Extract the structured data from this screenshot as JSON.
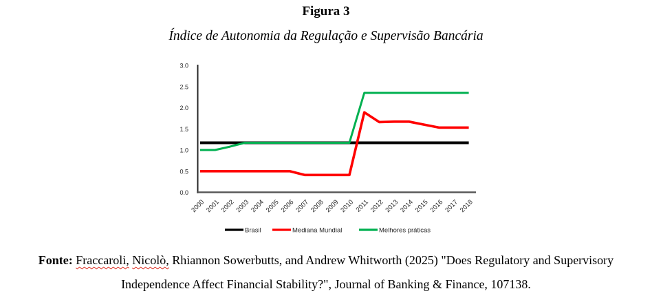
{
  "figure": {
    "label": "Figura 3",
    "subtitle": "Índice de Autonomia da Regulação e Supervisão Bancária"
  },
  "chart_data": {
    "type": "line",
    "title": "Índice de Autonomia da Regulação e Supervisão Bancária",
    "x": [
      2000,
      2001,
      2002,
      2003,
      2004,
      2005,
      2006,
      2007,
      2008,
      2009,
      2010,
      2011,
      2012,
      2013,
      2014,
      2015,
      2016,
      2017,
      2018
    ],
    "series": [
      {
        "name": "Brasil",
        "color": "#000000",
        "values": [
          1.17,
          1.17,
          1.17,
          1.17,
          1.17,
          1.17,
          1.17,
          1.17,
          1.17,
          1.17,
          1.17,
          1.17,
          1.17,
          1.17,
          1.17,
          1.17,
          1.17,
          1.17,
          1.17
        ]
      },
      {
        "name": "Mediana Mundial",
        "color": "#FF0000",
        "values": [
          0.5,
          0.5,
          0.5,
          0.5,
          0.5,
          0.5,
          0.5,
          0.41,
          0.41,
          0.41,
          0.41,
          1.89,
          1.66,
          1.67,
          1.67,
          1.6,
          1.53,
          1.53,
          1.53
        ]
      },
      {
        "name": "Melhores práticas",
        "color": "#00B050",
        "values": [
          1.0,
          1.0,
          1.08,
          1.17,
          1.17,
          1.17,
          1.17,
          1.17,
          1.17,
          1.17,
          1.17,
          2.35,
          2.35,
          2.35,
          2.35,
          2.35,
          2.35,
          2.35,
          2.35
        ]
      }
    ],
    "ylim": [
      0,
      3
    ],
    "ytick_step": 0.5,
    "ytick_labels": [
      "0.0",
      "0.5",
      "1.0",
      "1.5",
      "2.0",
      "2.5",
      "3.0"
    ],
    "grid": false,
    "legend_position": "bottom",
    "axis_color": "#595959",
    "tick_label_color": "#262626"
  },
  "source": {
    "label": "Fonte:",
    "word1": "Fraccaroli,",
    "word2": "Nicolò,",
    "line1_rest": "Rhiannon Sowerbutts, and Andrew Whitworth (2025) \"Does Regulatory and Supervisory",
    "line2": "Independence Affect Financial Stability?\", Journal of Banking & Finance, 107138."
  }
}
